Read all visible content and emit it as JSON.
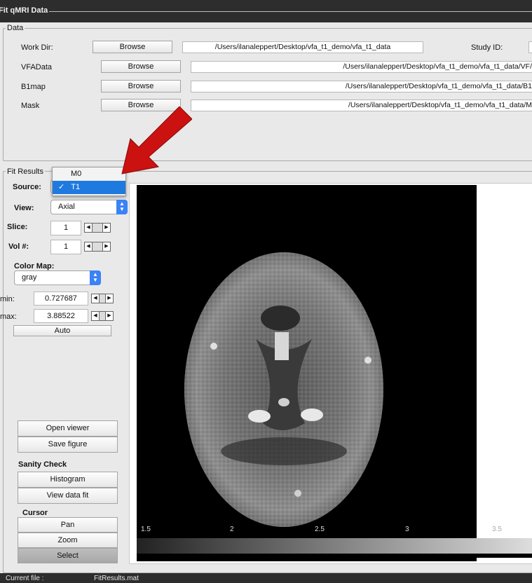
{
  "window": {
    "title": "Fit qMRI Data"
  },
  "data_panel": {
    "legend": "Data",
    "work_dir": {
      "label": "Work Dir:",
      "button": "Browse",
      "value": "/Users/ilanaleppert/Desktop/vfa_t1_demo/vfa_t1_data"
    },
    "study_id_label": "Study ID:",
    "rows": [
      {
        "label": "VFAData",
        "button": "Browse",
        "value": "/Users/ilanaleppert/Desktop/vfa_t1_demo/vfa_t1_data/VF/"
      },
      {
        "label": "B1map",
        "button": "Browse",
        "value": "/Users/ilanaleppert/Desktop/vfa_t1_demo/vfa_t1_data/B1"
      },
      {
        "label": "Mask",
        "button": "Browse",
        "value": "/Users/ilanaleppert/Desktop/vfa_t1_demo/vfa_t1_data/M"
      }
    ]
  },
  "fit_results": {
    "legend": "Fit Results",
    "source_label": "Source:",
    "source_options": [
      {
        "label": "M0",
        "checked": false
      },
      {
        "label": "T1",
        "checked": true
      }
    ],
    "check_mark": "✓",
    "view_label": "View:",
    "view_value": "Axial",
    "slice_label": "Slice:",
    "slice_value": "1",
    "vol_label": "Vol #:",
    "vol_value": "1",
    "colormap_label": "Color Map:",
    "colormap_value": "gray",
    "min_label": "min:",
    "min_value": "0.727687",
    "max_label": "max:",
    "max_value": "3.88522",
    "auto_button": "Auto",
    "open_viewer_button": "Open viewer",
    "save_figure_button": "Save figure",
    "sanity_check_label": "Sanity Check",
    "histogram_button": "Histogram",
    "view_data_fit_button": "View data fit",
    "cursor_label": "Cursor",
    "pan_button": "Pan",
    "zoom_button": "Zoom",
    "select_button": "Select",
    "colorbar_ticks": [
      "1.5",
      "2",
      "2.5",
      "3",
      "3.5"
    ]
  },
  "status": {
    "current_file_label": "Current file :",
    "current_file_value": "FitResults.mat"
  },
  "colors": {
    "accent": "#3b82f6",
    "arrow": "#cc1111",
    "panel": "#e9e9e9",
    "chrome": "#2d2d2d"
  }
}
